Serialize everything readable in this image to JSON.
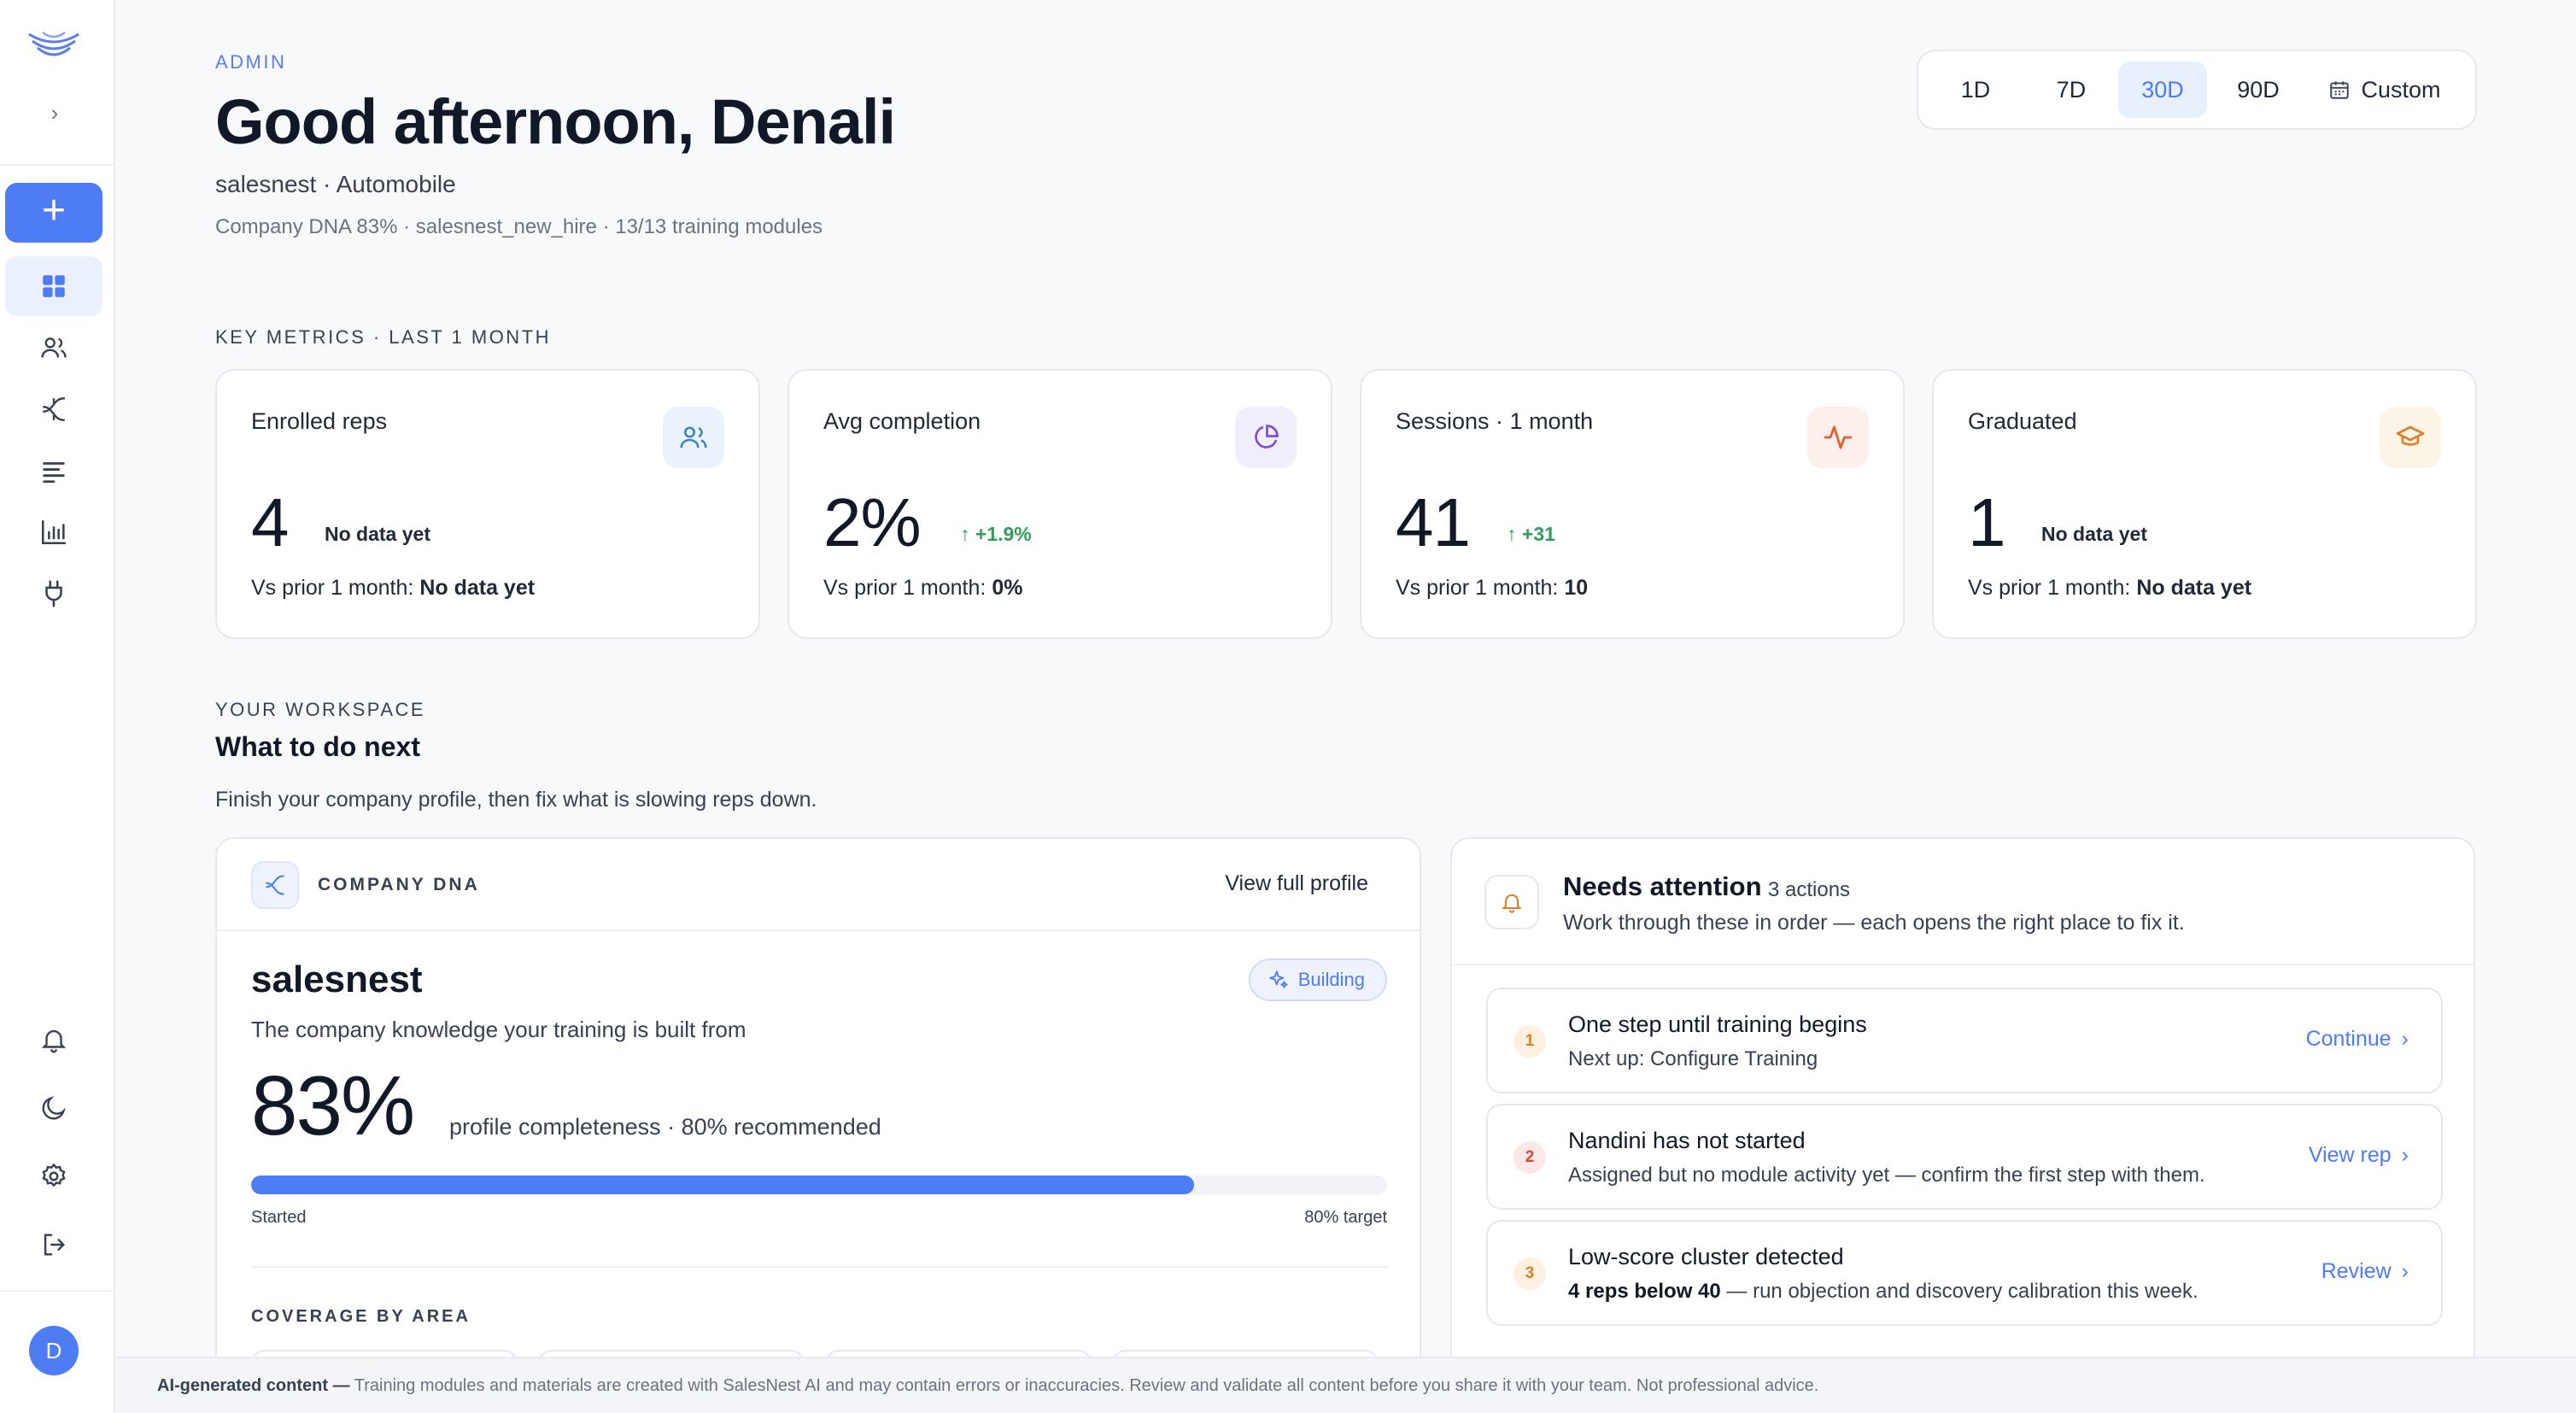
{
  "colors": {
    "accent": "#4d7cf4",
    "positive": "#2f9e5a",
    "page_bg": "#f8f9fb",
    "card_border": "#e6e8ee"
  },
  "sidebar": {
    "logo": "salesnest-logo-icon",
    "expand_icon": "chevron-right-icon",
    "add_label": "+",
    "nav": [
      {
        "name": "dashboard",
        "icon": "grid-icon",
        "active": true
      },
      {
        "name": "users",
        "icon": "users-icon",
        "active": false
      },
      {
        "name": "dna",
        "icon": "sparkle-icon",
        "active": false
      },
      {
        "name": "modules",
        "icon": "list-icon",
        "active": false
      },
      {
        "name": "analytics",
        "icon": "bar-chart-icon",
        "active": false
      },
      {
        "name": "integrations",
        "icon": "plug-icon",
        "active": false
      }
    ],
    "bottom": [
      {
        "name": "notifications",
        "icon": "bell-icon"
      },
      {
        "name": "theme",
        "icon": "moon-icon"
      },
      {
        "name": "settings",
        "icon": "gear-icon"
      },
      {
        "name": "logout",
        "icon": "logout-icon"
      }
    ],
    "avatar_initial": "D"
  },
  "header": {
    "role": "ADMIN",
    "greeting": "Good afternoon, Denali",
    "company_line": "salesnest · Automobile",
    "meta_line": "Company DNA 83% · salesnest_new_hire · 13/13 training modules"
  },
  "range": {
    "options": [
      "1D",
      "7D",
      "30D",
      "90D"
    ],
    "selected": "30D",
    "custom_label": "Custom",
    "custom_icon": "calendar-icon"
  },
  "metrics": {
    "section_label": "KEY METRICS · LAST 1 MONTH",
    "cards": [
      {
        "label": "Enrolled reps",
        "value": "4",
        "delta": "No data yet",
        "delta_up": false,
        "prior_label": "Vs prior 1 month:",
        "prior_value": "No data yet",
        "icon": "users-icon",
        "icon_bg": "#eaf3fb",
        "icon_color": "#3b82c4"
      },
      {
        "label": "Avg completion",
        "value": "2%",
        "delta": "+1.9%",
        "delta_up": true,
        "prior_label": "Vs prior 1 month:",
        "prior_value": "0%",
        "icon": "pie-chart-icon",
        "icon_bg": "#f1eefc",
        "icon_color": "#7c4ddb"
      },
      {
        "label": "Sessions · 1 month",
        "value": "41",
        "delta": "+31",
        "delta_up": true,
        "prior_label": "Vs prior 1 month:",
        "prior_value": "10",
        "icon": "activity-icon",
        "icon_bg": "#fdf0ea",
        "icon_color": "#e0622e"
      },
      {
        "label": "Graduated",
        "value": "1",
        "delta": "No data yet",
        "delta_up": false,
        "prior_label": "Vs prior 1 month:",
        "prior_value": "No data yet",
        "icon": "graduation-cap-icon",
        "icon_bg": "#fdf4e8",
        "icon_color": "#d9822b"
      }
    ]
  },
  "workspace": {
    "eyebrow": "YOUR WORKSPACE",
    "title": "What to do next",
    "subtitle": "Finish your company profile, then fix what is slowing reps down."
  },
  "dna": {
    "eyebrow": "COMPANY DNA",
    "link": "View full profile",
    "name": "salesnest",
    "badge": "Building",
    "description": "The company knowledge your training is built from",
    "percent": "83%",
    "percent_note": "profile completeness · 80% recommended",
    "progress": 0.83,
    "progress_left": "Started",
    "progress_right": "80% target",
    "coverage_label": "COVERAGE BY AREA"
  },
  "attention": {
    "title": "Needs attention",
    "count": "3 actions",
    "subtitle": "Work through these in order — each opens the right place to fix it.",
    "items": [
      {
        "num": "1",
        "title": "One step until training begins",
        "sub_bold": "",
        "sub": "Next up: Configure Training",
        "action": "Continue",
        "num_bg": "#fdf0e0",
        "num_color": "#d9822b"
      },
      {
        "num": "2",
        "title": "Nandini has not started",
        "sub_bold": "",
        "sub": "Assigned but no module activity yet — confirm the first step with them.",
        "action": "View rep",
        "num_bg": "#fde8e8",
        "num_color": "#d9453b"
      },
      {
        "num": "3",
        "title": "Low-score cluster detected",
        "sub_bold": "4 reps below 40",
        "sub": " — run objection and discovery calibration this week.",
        "action": "Review",
        "num_bg": "#fdf0e0",
        "num_color": "#d9822b"
      }
    ]
  },
  "footer": {
    "bold": "AI-generated content —",
    "text": " Training modules and materials are created with SalesNest AI and may contain errors or inaccuracies. Review and validate all content before you share it with your team. Not professional advice."
  }
}
